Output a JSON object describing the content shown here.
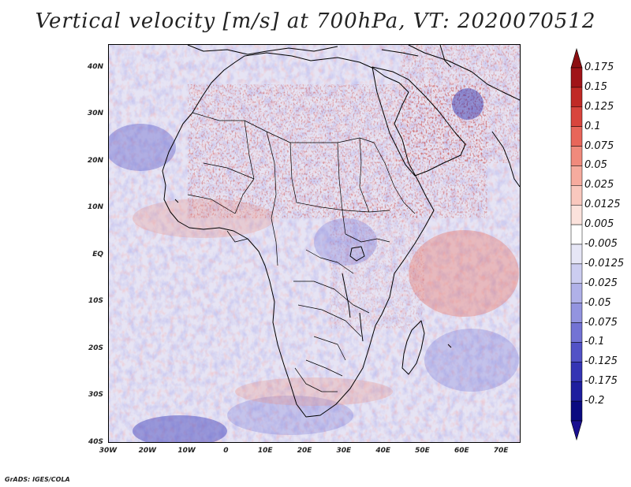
{
  "title": "Vertical velocity [m/s] at 700hPa, VT: 2020070512",
  "footer": "GrADS: IGES/COLA",
  "map": {
    "projection": "lat-lon",
    "lon_range": [
      -30,
      75
    ],
    "lat_range": [
      -40,
      45
    ],
    "lat_labels": [
      "40N",
      "30N",
      "20N",
      "10N",
      "EQ",
      "10S",
      "20S",
      "30S",
      "40S"
    ],
    "lon_labels": [
      "30W",
      "20W",
      "10W",
      "0",
      "10E",
      "20E",
      "30E",
      "40E",
      "50E",
      "60E",
      "70E"
    ]
  },
  "colorbar": {
    "levels": [
      "0.175",
      "0.15",
      "0.125",
      "0.1",
      "0.075",
      "0.05",
      "0.025",
      "0.0125",
      "0.005",
      "-0.005",
      "-0.0125",
      "-0.025",
      "-0.05",
      "-0.075",
      "-0.1",
      "-0.125",
      "-0.175",
      "-0.2"
    ],
    "colors": [
      "#a01418",
      "#c02a26",
      "#d8453d",
      "#e8665a",
      "#f08a7c",
      "#f6ab9e",
      "#f9c8be",
      "#fbe2dc",
      "#ffffff",
      "#e6e6f6",
      "#cccdf0",
      "#b0b1e8",
      "#9394df",
      "#7373d4",
      "#5252c6",
      "#3434b4",
      "#1e1e9e",
      "#0a0a80"
    ],
    "top_triangle_color": "#8c0f12",
    "bottom_triangle_color": "#1a0f90"
  }
}
